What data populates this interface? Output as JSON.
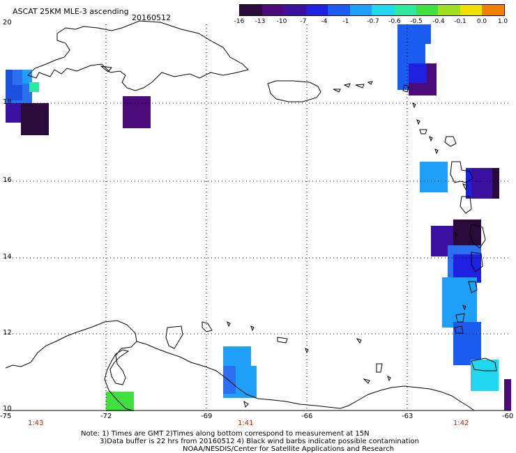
{
  "header": {
    "title": "ASCAT 25KM MLE-3 ascending",
    "date": "20160512"
  },
  "legend": {
    "labels": [
      "-16",
      "-13",
      "-10",
      "-7",
      "-4",
      "-1",
      "-0.7",
      "-0.6",
      "-0.5",
      "-0.4",
      "-0.1",
      "0.0",
      "1.0"
    ],
    "colors": [
      "#2a0a3a",
      "#4a0a7a",
      "#3a10a0",
      "#2020e0",
      "#1a5cf0",
      "#1ea0f8",
      "#1fd8f0",
      "#2ee8a0",
      "#40e040",
      "#a0e020",
      "#f0e000",
      "#f08000",
      "#e82010"
    ]
  },
  "map": {
    "lon_ticks": [
      "-75",
      "-72",
      "-69",
      "-66",
      "-63",
      "-60"
    ],
    "lat_ticks": [
      "20",
      "18",
      "16",
      "14",
      "12",
      "10"
    ],
    "times": [
      "1:43",
      "1:41",
      "1:42"
    ]
  },
  "notes": {
    "line1": "Note: 1) Times are GMT 2)Times along bottom correspond to measurement at 15N",
    "line2": "3)Data buffer is 22 hrs from 20160512 4) Black wind barbs indicate possible contamination",
    "line3": "NOAA/NESDIS/Center for Satellite Applications and Research"
  }
}
